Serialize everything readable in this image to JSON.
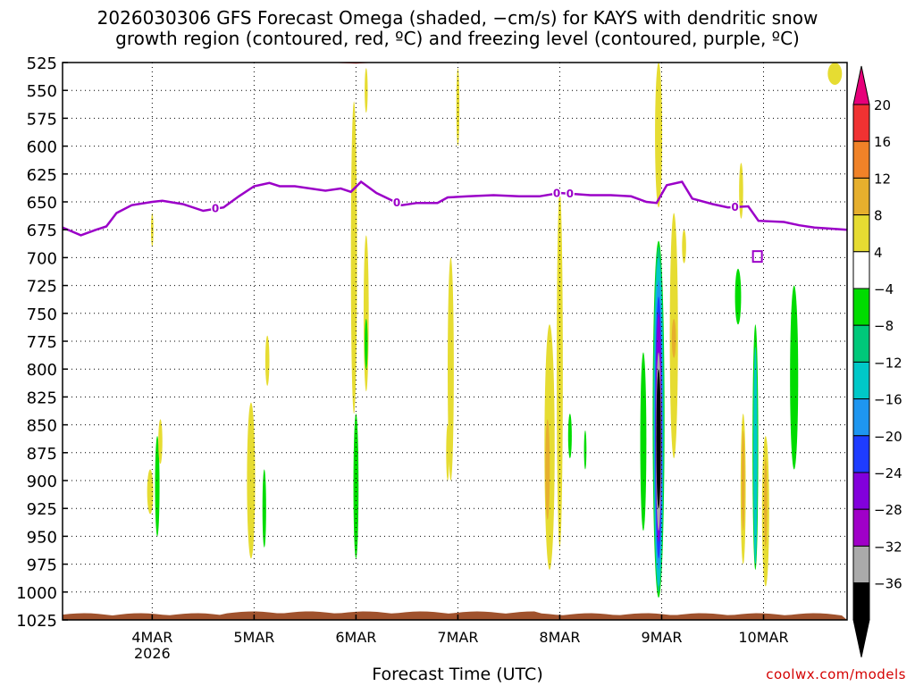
{
  "title_line1": "2026030306 GFS Forecast Omega (shaded, −cm/s) for KAYS with dendritic snow",
  "title_line2": "growth region (contoured, red, ºC) and freezing level (contoured, purple, ºC)",
  "credit": "coolwx.com/models",
  "chart_data": {
    "type": "heatmap",
    "xlabel": "Forecast Time (UTC)",
    "x_range_days": [
      3.12,
      10.82
    ],
    "y_levels_hpa": [
      525,
      550,
      575,
      600,
      625,
      650,
      675,
      700,
      725,
      750,
      775,
      800,
      825,
      850,
      875,
      900,
      925,
      950,
      975,
      1000,
      1025
    ],
    "y_ticks": [
      "525",
      "550",
      "575",
      "600",
      "625",
      "650",
      "675",
      "700",
      "725",
      "750",
      "775",
      "800",
      "825",
      "850",
      "875",
      "900",
      "925",
      "950",
      "975",
      "1000",
      "1025"
    ],
    "x_ticks": [
      {
        "day": 4,
        "label": "4MAR",
        "sublabel": "2026"
      },
      {
        "day": 5,
        "label": "5MAR",
        "sublabel": ""
      },
      {
        "day": 6,
        "label": "6MAR",
        "sublabel": ""
      },
      {
        "day": 7,
        "label": "7MAR",
        "sublabel": ""
      },
      {
        "day": 8,
        "label": "8MAR",
        "sublabel": ""
      },
      {
        "day": 9,
        "label": "9MAR",
        "sublabel": ""
      },
      {
        "day": 10,
        "label": "10MAR",
        "sublabel": ""
      }
    ],
    "grid": true,
    "colorbar": {
      "labels": [
        "20",
        "16",
        "12",
        "8",
        "4",
        "−4",
        "−8",
        "−12",
        "−16",
        "−20",
        "−24",
        "−28",
        "−32",
        "−36"
      ],
      "colors": [
        "#f03232",
        "#f08228",
        "#e6af2d",
        "#e6dc32",
        "#ffffff",
        "#00dc00",
        "#00c87a",
        "#00c8c8",
        "#1e96f0",
        "#1e3cff",
        "#8200dc",
        "#a000c8",
        "#aaaaaa",
        "#000000"
      ],
      "top_arrow": "#e6007a",
      "bottom_arrow": "#000000"
    },
    "freezing_level": {
      "color": "#9b00c8",
      "label": "0",
      "points": [
        [
          3.12,
          673
        ],
        [
          3.3,
          680
        ],
        [
          3.45,
          675
        ],
        [
          3.55,
          672
        ],
        [
          3.65,
          660
        ],
        [
          3.8,
          653
        ],
        [
          4.0,
          650
        ],
        [
          4.1,
          649
        ],
        [
          4.3,
          652
        ],
        [
          4.5,
          658
        ],
        [
          4.7,
          655
        ],
        [
          4.85,
          645
        ],
        [
          5.0,
          636
        ],
        [
          5.15,
          633
        ],
        [
          5.25,
          636
        ],
        [
          5.4,
          636
        ],
        [
          5.55,
          638
        ],
        [
          5.7,
          640
        ],
        [
          5.85,
          638
        ],
        [
          5.95,
          641
        ],
        [
          6.05,
          632
        ],
        [
          6.2,
          642
        ],
        [
          6.45,
          653
        ],
        [
          6.6,
          651
        ],
        [
          6.8,
          651
        ],
        [
          6.9,
          646
        ],
        [
          7.1,
          645
        ],
        [
          7.35,
          644
        ],
        [
          7.6,
          645
        ],
        [
          7.8,
          645
        ],
        [
          8.0,
          642
        ],
        [
          8.3,
          644
        ],
        [
          8.5,
          644
        ],
        [
          8.7,
          645
        ],
        [
          8.85,
          650
        ],
        [
          8.95,
          651
        ],
        [
          9.05,
          635
        ],
        [
          9.2,
          632
        ],
        [
          9.3,
          647
        ],
        [
          9.5,
          652
        ],
        [
          9.65,
          655
        ],
        [
          9.85,
          654
        ],
        [
          9.95,
          667
        ],
        [
          10.2,
          668
        ],
        [
          10.35,
          671
        ],
        [
          10.5,
          673
        ],
        [
          10.82,
          675
        ]
      ]
    },
    "dgz_contours": {
      "color": "#f03232",
      "segments": [
        [
          [
            5.7,
            524
          ],
          [
            6.0,
            525
          ],
          [
            6.2,
            524
          ]
        ],
        [
          [
            9.2,
            524
          ],
          [
            9.35,
            523
          ],
          [
            9.5,
            524
          ]
        ]
      ]
    },
    "shaded_regions": [
      {
        "day": 3.98,
        "p": [
          890,
          930
        ],
        "hw": 0.03,
        "color": "#e6dc32"
      },
      {
        "day": 4.05,
        "p": [
          860,
          950
        ],
        "hw": 0.022,
        "color": "#00dc00"
      },
      {
        "day": 4.08,
        "p": [
          845,
          885
        ],
        "hw": 0.02,
        "color": "#e6dc32"
      },
      {
        "day": 4.0,
        "p": [
          660,
          690
        ],
        "hw": 0.012,
        "color": "#e6dc32"
      },
      {
        "day": 4.97,
        "p": [
          830,
          970
        ],
        "hw": 0.04,
        "color": "#e6dc32"
      },
      {
        "day": 5.1,
        "p": [
          890,
          960
        ],
        "hw": 0.018,
        "color": "#00dc00"
      },
      {
        "day": 5.13,
        "p": [
          770,
          815
        ],
        "hw": 0.02,
        "color": "#e6dc32"
      },
      {
        "day": 5.98,
        "p": [
          560,
          840
        ],
        "hw": 0.03,
        "color": "#e6dc32"
      },
      {
        "day": 6.0,
        "p": [
          840,
          970
        ],
        "hw": 0.025,
        "color": "#00dc00"
      },
      {
        "day": 6.1,
        "p": [
          680,
          820
        ],
        "hw": 0.025,
        "color": "#e6dc32"
      },
      {
        "day": 6.1,
        "p": [
          755,
          800
        ],
        "hw": 0.015,
        "color": "#00dc00"
      },
      {
        "day": 6.1,
        "p": [
          530,
          570
        ],
        "hw": 0.015,
        "color": "#e6dc32"
      },
      {
        "day": 6.9,
        "p": [
          850,
          900
        ],
        "hw": 0.015,
        "color": "#e6dc32"
      },
      {
        "day": 6.93,
        "p": [
          700,
          900
        ],
        "hw": 0.03,
        "color": "#e6dc32"
      },
      {
        "day": 7.0,
        "p": [
          530,
          600
        ],
        "hw": 0.015,
        "color": "#e6dc32"
      },
      {
        "day": 7.9,
        "p": [
          760,
          980
        ],
        "hw": 0.05,
        "color": "#e6dc32"
      },
      {
        "day": 7.88,
        "p": [
          845,
          935
        ],
        "hw": 0.022,
        "color": "#e6af2d"
      },
      {
        "day": 8.0,
        "p": [
          640,
          960
        ],
        "hw": 0.03,
        "color": "#e6dc32"
      },
      {
        "day": 8.1,
        "p": [
          840,
          880
        ],
        "hw": 0.018,
        "color": "#00dc00"
      },
      {
        "day": 8.25,
        "p": [
          855,
          890
        ],
        "hw": 0.012,
        "color": "#00dc00"
      },
      {
        "day": 8.82,
        "p": [
          785,
          945
        ],
        "hw": 0.03,
        "color": "#00dc00"
      },
      {
        "day": 8.97,
        "p": [
          525,
          655
        ],
        "hw": 0.035,
        "color": "#e6dc32"
      },
      {
        "day": 9.12,
        "p": [
          660,
          880
        ],
        "hw": 0.04,
        "color": "#e6dc32"
      },
      {
        "day": 9.12,
        "p": [
          755,
          790
        ],
        "hw": 0.02,
        "color": "#e6af2d"
      },
      {
        "day": 9.22,
        "p": [
          675,
          705
        ],
        "hw": 0.02,
        "color": "#e6dc32"
      },
      {
        "day": 8.97,
        "p": [
          685,
          1005
        ],
        "hw": 0.058,
        "color": "#00dc00"
      },
      {
        "day": 8.97,
        "p": [
          690,
          1000
        ],
        "hw": 0.052,
        "color": "#00c87a"
      },
      {
        "day": 8.97,
        "p": [
          700,
          995
        ],
        "hw": 0.046,
        "color": "#00c8c8"
      },
      {
        "day": 8.97,
        "p": [
          720,
          980
        ],
        "hw": 0.04,
        "color": "#1e96f0"
      },
      {
        "day": 8.97,
        "p": [
          735,
          970
        ],
        "hw": 0.035,
        "color": "#1e3cff"
      },
      {
        "day": 8.97,
        "p": [
          750,
          955
        ],
        "hw": 0.03,
        "color": "#8200dc"
      },
      {
        "day": 8.97,
        "p": [
          785,
          945
        ],
        "hw": 0.026,
        "color": "#aaaaaa"
      },
      {
        "day": 8.97,
        "p": [
          800,
          925
        ],
        "hw": 0.022,
        "color": "#000000"
      },
      {
        "day": 9.75,
        "p": [
          710,
          760
        ],
        "hw": 0.03,
        "color": "#00dc00"
      },
      {
        "day": 9.8,
        "p": [
          840,
          975
        ],
        "hw": 0.025,
        "color": "#e6dc32"
      },
      {
        "day": 9.8,
        "p": [
          855,
          945
        ],
        "hw": 0.015,
        "color": "#e6af2d"
      },
      {
        "day": 9.92,
        "p": [
          760,
          980
        ],
        "hw": 0.028,
        "color": "#00dc00"
      },
      {
        "day": 9.92,
        "p": [
          780,
          975
        ],
        "hw": 0.02,
        "color": "#00c8c8"
      },
      {
        "day": 10.02,
        "p": [
          860,
          995
        ],
        "hw": 0.035,
        "color": "#e6dc32"
      },
      {
        "day": 10.02,
        "p": [
          880,
          960
        ],
        "hw": 0.015,
        "color": "#e6af2d"
      },
      {
        "day": 10.3,
        "p": [
          725,
          890
        ],
        "hw": 0.04,
        "color": "#00dc00"
      },
      {
        "day": 9.78,
        "p": [
          615,
          665
        ],
        "hw": 0.02,
        "color": "#e6dc32"
      },
      {
        "day": 10.7,
        "p": [
          525,
          545
        ],
        "hw": 0.07,
        "color": "#e6dc32"
      }
    ]
  }
}
